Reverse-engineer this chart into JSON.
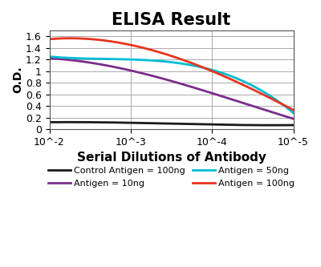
{
  "title": "ELISA Result",
  "ylabel": "O.D.",
  "xlabel": "Serial Dilutions of Antibody",
  "x_values": [
    -2,
    -3,
    -4,
    -5
  ],
  "x_tick_labels": [
    "10^-2",
    "10^-3",
    "10^-4",
    "10^-5"
  ],
  "ylim": [
    0,
    1.7
  ],
  "yticks": [
    0,
    0.2,
    0.4,
    0.6,
    0.8,
    1.0,
    1.2,
    1.4,
    1.6
  ],
  "lines": [
    {
      "label": "Control Antigen = 100ng",
      "color": "#1a1a1a",
      "y_values": [
        0.12,
        0.11,
        0.08,
        0.07
      ]
    },
    {
      "label": "Antigen = 10ng",
      "color": "#7b2d8b",
      "y_values": [
        1.22,
        1.01,
        0.62,
        0.18
      ]
    },
    {
      "label": "Antigen = 50ng",
      "color": "#00bcd4",
      "y_values": [
        1.25,
        1.2,
        1.02,
        0.28
      ]
    },
    {
      "label": "Antigen = 100ng",
      "color": "#e8341c",
      "y_values": [
        1.55,
        1.45,
        1.0,
        0.33
      ]
    }
  ],
  "legend_order": [
    0,
    1,
    2,
    3
  ],
  "title_fontsize": 15,
  "label_fontsize": 10,
  "tick_fontsize": 9,
  "legend_fontsize": 8,
  "background_color": "#ffffff",
  "grid_color": "#aaaaaa"
}
